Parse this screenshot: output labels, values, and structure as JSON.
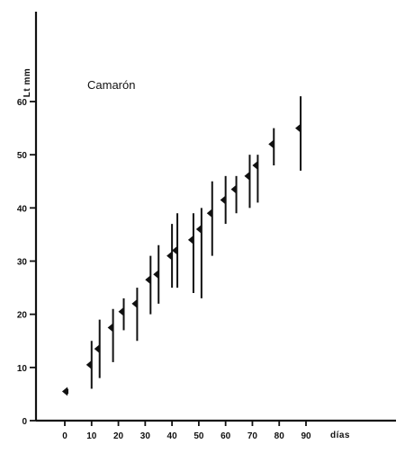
{
  "chart_data": {
    "type": "scatter",
    "title": "Camarón",
    "xlabel": "días",
    "ylabel": "Lt mm",
    "xlim": [
      0,
      90
    ],
    "ylim": [
      0,
      60
    ],
    "xticks": [
      "0",
      "10",
      "20",
      "30",
      "40",
      "50",
      "60",
      "70",
      "80",
      "90"
    ],
    "yticks": [
      "0",
      "10",
      "20",
      "30",
      "40",
      "50",
      "60"
    ],
    "grid": false,
    "series": [
      {
        "points": [
          {
            "x": 1,
            "y": 5.5,
            "low": 5,
            "high": 6
          },
          {
            "x": 10,
            "y": 10.5,
            "low": 6,
            "high": 15
          },
          {
            "x": 13,
            "y": 13.5,
            "low": 8,
            "high": 19
          },
          {
            "x": 18,
            "y": 17.5,
            "low": 11,
            "high": 21
          },
          {
            "x": 22,
            "y": 20.5,
            "low": 17,
            "high": 23
          },
          {
            "x": 27,
            "y": 22,
            "low": 15,
            "high": 25
          },
          {
            "x": 32,
            "y": 26.5,
            "low": 20,
            "high": 31
          },
          {
            "x": 35,
            "y": 27.5,
            "low": 22,
            "high": 33
          },
          {
            "x": 40,
            "y": 31,
            "low": 25,
            "high": 37
          },
          {
            "x": 42,
            "y": 32,
            "low": 25,
            "high": 39
          },
          {
            "x": 48,
            "y": 34,
            "low": 24,
            "high": 39
          },
          {
            "x": 51,
            "y": 36,
            "low": 23,
            "high": 40
          },
          {
            "x": 55,
            "y": 39,
            "low": 31,
            "high": 45
          },
          {
            "x": 60,
            "y": 41.5,
            "low": 37,
            "high": 46
          },
          {
            "x": 64,
            "y": 43.5,
            "low": 39,
            "high": 46
          },
          {
            "x": 69,
            "y": 46,
            "low": 40,
            "high": 50
          },
          {
            "x": 72,
            "y": 48,
            "low": 41,
            "high": 50
          },
          {
            "x": 78,
            "y": 52,
            "low": 48,
            "high": 55
          },
          {
            "x": 88,
            "y": 55,
            "low": 47,
            "high": 61
          }
        ]
      }
    ]
  }
}
